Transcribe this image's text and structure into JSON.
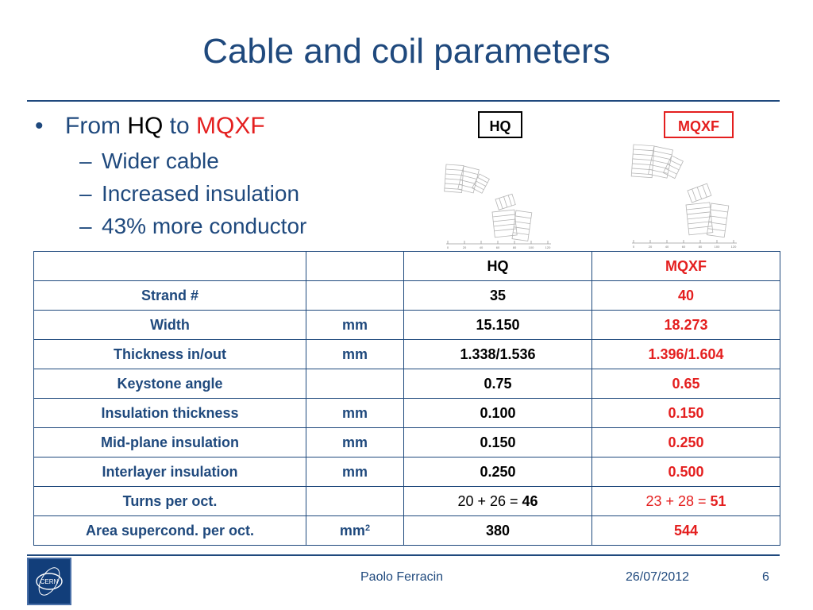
{
  "slide": {
    "title": "Cable and coil parameters",
    "bullet": {
      "prefix": "From ",
      "hq": "HQ",
      "mid": " to ",
      "mqxf": "MQXF"
    },
    "sub_bullets": [
      "Wider cable",
      "Increased insulation",
      "43% more conductor"
    ],
    "labels": {
      "hq": "HQ",
      "mqxf": "MQXF"
    },
    "coil_axis_ticks": [
      "0",
      "20",
      "40",
      "60",
      "80",
      "100",
      "120"
    ]
  },
  "table": {
    "header": {
      "name": "",
      "unit": "",
      "hq": "HQ",
      "mqxf": "MQXF"
    },
    "rows": [
      {
        "name": "Strand #",
        "unit": "",
        "hq": "35",
        "mqxf": "40"
      },
      {
        "name": "Width",
        "unit": "mm",
        "hq": "15.150",
        "mqxf": "18.273"
      },
      {
        "name": "Thickness in/out",
        "unit": "mm",
        "hq": "1.338/1.536",
        "mqxf": "1.396/1.604"
      },
      {
        "name": "Keystone angle",
        "unit": "",
        "hq": "0.75",
        "mqxf": "0.65"
      },
      {
        "name": "Insulation thickness",
        "unit": "mm",
        "hq": "0.100",
        "mqxf": "0.150"
      },
      {
        "name": "Mid-plane insulation",
        "unit": "mm",
        "hq": "0.150",
        "mqxf": "0.250"
      },
      {
        "name": "Interlayer insulation",
        "unit": "mm",
        "hq": "0.250",
        "mqxf": "0.500"
      },
      {
        "name": "Turns per oct.",
        "unit": "",
        "hq_prefix": "20 + 26 = ",
        "hq_total": "46",
        "mqxf_prefix": "23 + 28 = ",
        "mqxf_total": "51"
      },
      {
        "name": "Area supercond. per oct.",
        "unit": "mm",
        "unit_sup": "2",
        "hq": "380",
        "mqxf": "544"
      }
    ]
  },
  "footer": {
    "logo_text": "CERN",
    "author": "Paolo Ferracin",
    "date": "26/07/2012",
    "page": "6"
  },
  "colors": {
    "accent": "#1f497d",
    "highlight": "#e41f1f",
    "text": "#000000"
  }
}
